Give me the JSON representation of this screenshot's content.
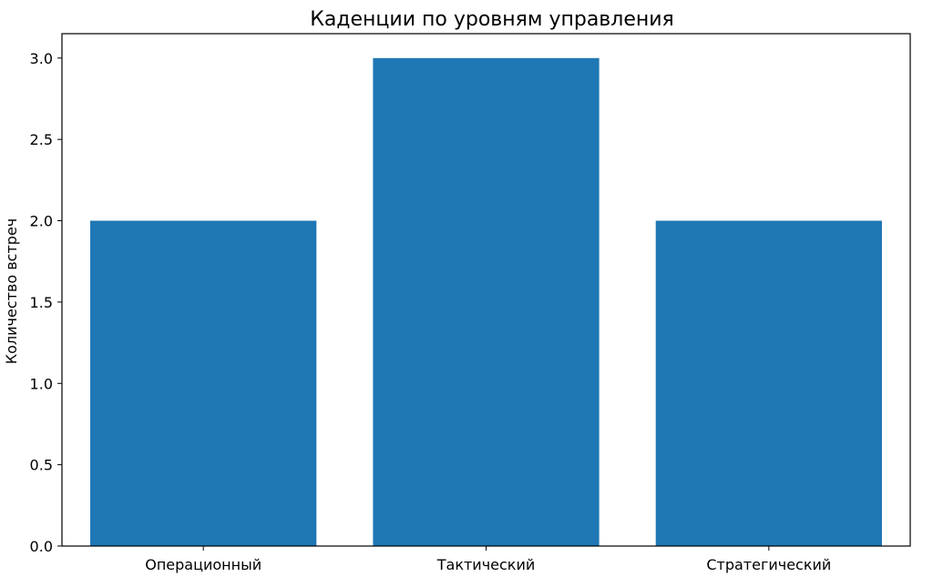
{
  "chart_data": {
    "type": "bar",
    "title": "Каденции по уровням управления",
    "xlabel": "",
    "ylabel": "Количество встреч",
    "categories": [
      "Операционный",
      "Тактический",
      "Стратегический"
    ],
    "values": [
      2,
      3,
      2
    ],
    "ylim": [
      0,
      3.15
    ],
    "yticks": [
      "0.0",
      "0.5",
      "1.0",
      "1.5",
      "2.0",
      "2.5",
      "3.0"
    ],
    "grid": false,
    "bar_color": "#1f77b4"
  }
}
